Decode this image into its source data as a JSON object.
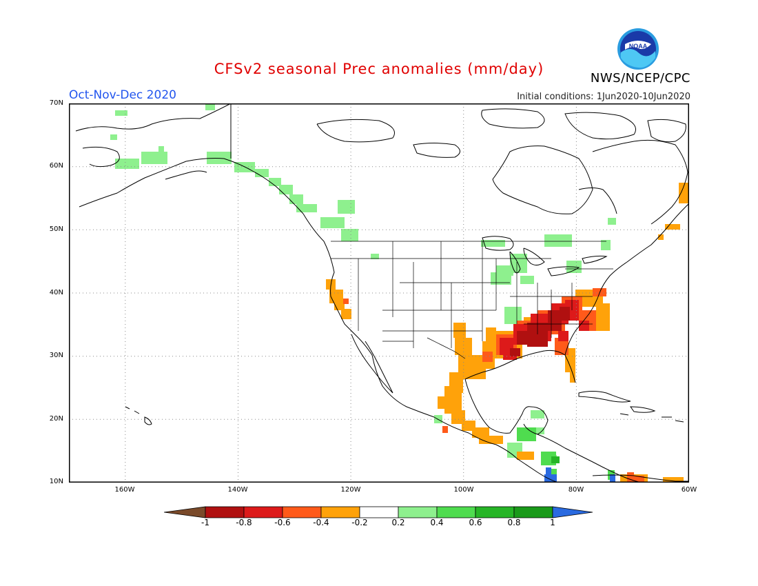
{
  "header": {
    "title": "CFSv2 seasonal Prec anomalies (mm/day)",
    "period": "Oct-Nov-Dec 2020",
    "initial_conditions": "Initial conditions: 1Jun2020-10Jun2020",
    "agency": "NWS/NCEP/CPC",
    "logo_text": "NOAA"
  },
  "map": {
    "y_ticks": [
      "70N",
      "60N",
      "50N",
      "40N",
      "30N",
      "20N",
      "10N"
    ],
    "x_ticks": [
      "160W",
      "140W",
      "120W",
      "100W",
      "80W",
      "60W"
    ],
    "lon_range": [
      -170,
      -60
    ],
    "lat_range": [
      10,
      70
    ]
  },
  "colorbar": {
    "labels": [
      "-1",
      "-0.8",
      "-0.6",
      "-0.4",
      "-0.2",
      "0.2",
      "0.4",
      "0.6",
      "0.8",
      "1"
    ],
    "colors": [
      "#7a4a2a",
      "#b01010",
      "#dd1a1a",
      "#ff5a1a",
      "#ffa20a",
      "#ffffff",
      "#8ef08e",
      "#4fdc4f",
      "#26b526",
      "#1a9a1a",
      "#2a6ae0"
    ]
  }
}
